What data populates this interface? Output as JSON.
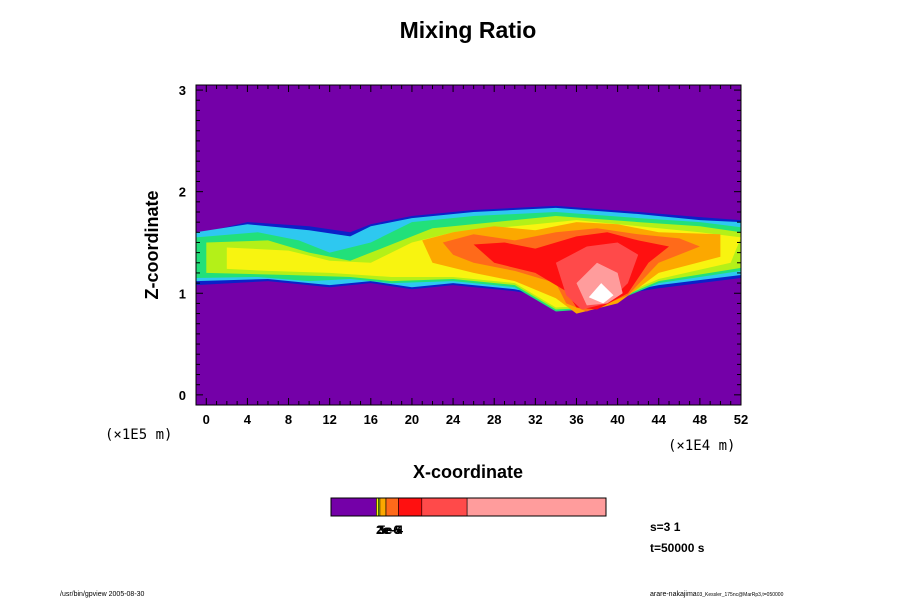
{
  "chart_data": {
    "type": "heatmap",
    "title": "Mixing Ratio",
    "xlabel": "X-coordinate",
    "ylabel": "Z-coordinate",
    "x_scale_label": "(×1E4 m)",
    "y_scale_label": "(×1E5 m)",
    "xlim": [
      -1,
      52
    ],
    "ylim": [
      -0.1,
      3.05
    ],
    "x_ticks": [
      0,
      4,
      8,
      12,
      16,
      20,
      24,
      28,
      32,
      36,
      40,
      44,
      48,
      52
    ],
    "x_tick_labels": [
      "0",
      "4",
      "8",
      "12",
      "16",
      "20",
      "24",
      "28",
      "32",
      "36",
      "40",
      "44",
      "48",
      "52"
    ],
    "y_ticks": [
      0,
      1,
      2,
      3
    ],
    "y_tick_labels": [
      "0",
      "1",
      "2",
      "3"
    ],
    "background_color": "#7400a8",
    "levels": [
      {
        "color": "#7400a8"
      },
      {
        "color": "#0c20c8"
      },
      {
        "color": "#2ec8f0"
      },
      {
        "color": "#22e07a"
      },
      {
        "color": "#b4f018"
      },
      {
        "color": "#f8f410"
      },
      {
        "color": "#fca800"
      },
      {
        "color": "#ff6a1a"
      },
      {
        "color": "#ff1010"
      },
      {
        "color": "#ff4a4a"
      },
      {
        "color": "#ff9c9c"
      },
      {
        "color": "#ffffff"
      }
    ],
    "regions": [
      {
        "level": 1,
        "points": [
          [
            -1,
            1.58
          ],
          [
            4,
            1.7
          ],
          [
            10,
            1.66
          ],
          [
            14,
            1.6
          ],
          [
            16,
            1.68
          ],
          [
            20,
            1.76
          ],
          [
            26,
            1.82
          ],
          [
            34,
            1.86
          ],
          [
            42,
            1.8
          ],
          [
            48,
            1.75
          ],
          [
            52,
            1.72
          ],
          [
            52,
            1.15
          ],
          [
            44,
            1.05
          ],
          [
            36,
            0.92
          ],
          [
            30,
            1.02
          ],
          [
            24,
            1.08
          ],
          [
            20,
            1.04
          ],
          [
            16,
            1.1
          ],
          [
            12,
            1.06
          ],
          [
            6,
            1.12
          ],
          [
            -1,
            1.08
          ]
        ]
      },
      {
        "level": 2,
        "points": [
          [
            -1,
            1.6
          ],
          [
            4,
            1.68
          ],
          [
            10,
            1.62
          ],
          [
            14,
            1.56
          ],
          [
            16,
            1.66
          ],
          [
            20,
            1.74
          ],
          [
            26,
            1.8
          ],
          [
            34,
            1.84
          ],
          [
            42,
            1.78
          ],
          [
            48,
            1.72
          ],
          [
            52,
            1.7
          ],
          [
            52,
            1.18
          ],
          [
            44,
            1.08
          ],
          [
            36,
            0.92
          ],
          [
            30,
            1.04
          ],
          [
            24,
            1.1
          ],
          [
            20,
            1.06
          ],
          [
            16,
            1.12
          ],
          [
            12,
            1.08
          ],
          [
            6,
            1.14
          ],
          [
            -1,
            1.12
          ]
        ]
      },
      {
        "level": 3,
        "points": [
          [
            -1,
            1.55
          ],
          [
            5,
            1.6
          ],
          [
            9,
            1.52
          ],
          [
            12,
            1.4
          ],
          [
            16,
            1.5
          ],
          [
            20,
            1.7
          ],
          [
            26,
            1.76
          ],
          [
            34,
            1.8
          ],
          [
            42,
            1.74
          ],
          [
            48,
            1.7
          ],
          [
            52,
            1.65
          ],
          [
            52,
            1.22
          ],
          [
            44,
            1.1
          ],
          [
            38,
            0.85
          ],
          [
            34,
            0.82
          ],
          [
            30,
            1.06
          ],
          [
            24,
            1.12
          ],
          [
            18,
            1.1
          ],
          [
            14,
            1.14
          ],
          [
            10,
            1.12
          ],
          [
            5,
            1.16
          ],
          [
            -1,
            1.15
          ]
        ]
      },
      {
        "level": 4,
        "points": [
          [
            0,
            1.5
          ],
          [
            6,
            1.52
          ],
          [
            10,
            1.4
          ],
          [
            14,
            1.32
          ],
          [
            18,
            1.48
          ],
          [
            22,
            1.64
          ],
          [
            28,
            1.7
          ],
          [
            34,
            1.76
          ],
          [
            42,
            1.7
          ],
          [
            48,
            1.66
          ],
          [
            52,
            1.6
          ],
          [
            52,
            1.25
          ],
          [
            44,
            1.12
          ],
          [
            38,
            0.86
          ],
          [
            34,
            0.84
          ],
          [
            30,
            1.08
          ],
          [
            24,
            1.14
          ],
          [
            18,
            1.12
          ],
          [
            14,
            1.16
          ],
          [
            8,
            1.18
          ],
          [
            0,
            1.2
          ]
        ]
      },
      {
        "level": 5,
        "points": [
          [
            2,
            1.45
          ],
          [
            8,
            1.42
          ],
          [
            12,
            1.32
          ],
          [
            16,
            1.3
          ],
          [
            20,
            1.5
          ],
          [
            24,
            1.6
          ],
          [
            30,
            1.66
          ],
          [
            36,
            1.72
          ],
          [
            42,
            1.66
          ],
          [
            48,
            1.6
          ],
          [
            52,
            1.55
          ],
          [
            51,
            1.3
          ],
          [
            44,
            1.14
          ],
          [
            38,
            0.88
          ],
          [
            34,
            0.86
          ],
          [
            30,
            1.1
          ],
          [
            24,
            1.16
          ],
          [
            18,
            1.16
          ],
          [
            12,
            1.2
          ],
          [
            6,
            1.22
          ],
          [
            2,
            1.24
          ]
        ]
      },
      {
        "level": 6,
        "points": [
          [
            21,
            1.52
          ],
          [
            24,
            1.6
          ],
          [
            28,
            1.66
          ],
          [
            32,
            1.62
          ],
          [
            36,
            1.7
          ],
          [
            40,
            1.68
          ],
          [
            44,
            1.6
          ],
          [
            50,
            1.58
          ],
          [
            50,
            1.36
          ],
          [
            44,
            1.2
          ],
          [
            40,
            0.9
          ],
          [
            36,
            0.8
          ],
          [
            34,
            0.95
          ],
          [
            30,
            1.12
          ],
          [
            26,
            1.2
          ],
          [
            22,
            1.3
          ]
        ]
      },
      {
        "level": 7,
        "points": [
          [
            23,
            1.5
          ],
          [
            26,
            1.58
          ],
          [
            30,
            1.52
          ],
          [
            34,
            1.6
          ],
          [
            38,
            1.64
          ],
          [
            42,
            1.58
          ],
          [
            46,
            1.54
          ],
          [
            48,
            1.46
          ],
          [
            44,
            1.3
          ],
          [
            41,
            0.98
          ],
          [
            37,
            0.82
          ],
          [
            35,
            0.9
          ],
          [
            34,
            1.1
          ],
          [
            30,
            1.22
          ],
          [
            26,
            1.3
          ],
          [
            24,
            1.38
          ]
        ]
      },
      {
        "level": 8,
        "points": [
          [
            26,
            1.48
          ],
          [
            29,
            1.5
          ],
          [
            32,
            1.44
          ],
          [
            36,
            1.56
          ],
          [
            39,
            1.6
          ],
          [
            42,
            1.52
          ],
          [
            45,
            1.46
          ],
          [
            43,
            1.3
          ],
          [
            41,
            1.0
          ],
          [
            38,
            0.84
          ],
          [
            36,
            0.86
          ],
          [
            35,
            1.02
          ],
          [
            32,
            1.2
          ],
          [
            28,
            1.3
          ]
        ]
      },
      {
        "level": 9,
        "points": [
          [
            34,
            1.3
          ],
          [
            37,
            1.46
          ],
          [
            40,
            1.5
          ],
          [
            42,
            1.38
          ],
          [
            41,
            1.1
          ],
          [
            39,
            0.9
          ],
          [
            36.5,
            0.84
          ],
          [
            35,
            0.98
          ]
        ]
      },
      {
        "level": 10,
        "points": [
          [
            36,
            1.1
          ],
          [
            38,
            1.3
          ],
          [
            40,
            1.2
          ],
          [
            40.5,
            1.0
          ],
          [
            39,
            0.9
          ],
          [
            37,
            0.88
          ]
        ]
      },
      {
        "level": 11,
        "points": [
          [
            37.2,
            0.96
          ],
          [
            38.4,
            1.1
          ],
          [
            39.6,
            0.98
          ],
          [
            38.6,
            0.9
          ]
        ]
      }
    ],
    "colorbar": {
      "segments": [
        {
          "end": 0.165,
          "color": "#7400a8"
        },
        {
          "end": 0.172,
          "color": "#f8f410"
        },
        {
          "end": 0.178,
          "color": "#b4f018"
        },
        {
          "end": 0.2,
          "color": "#fca800"
        },
        {
          "end": 0.245,
          "color": "#ff6a1a"
        },
        {
          "end": 0.33,
          "color": "#ff1010"
        },
        {
          "end": 0.495,
          "color": "#ff4a4a"
        },
        {
          "end": 1.0,
          "color": "#ff9c9c"
        }
      ],
      "labels": [
        "2e-6",
        "3e-5",
        "5e-4"
      ]
    }
  },
  "info": {
    "line1": "s=3 1",
    "line2": "t=50000 s"
  },
  "footer": {
    "left": "/usr/bin/gpview 2005-08-30",
    "right": "arare-nakajima",
    "right_small": "03_Kessler_175nc@MarRp3,t=050000"
  }
}
